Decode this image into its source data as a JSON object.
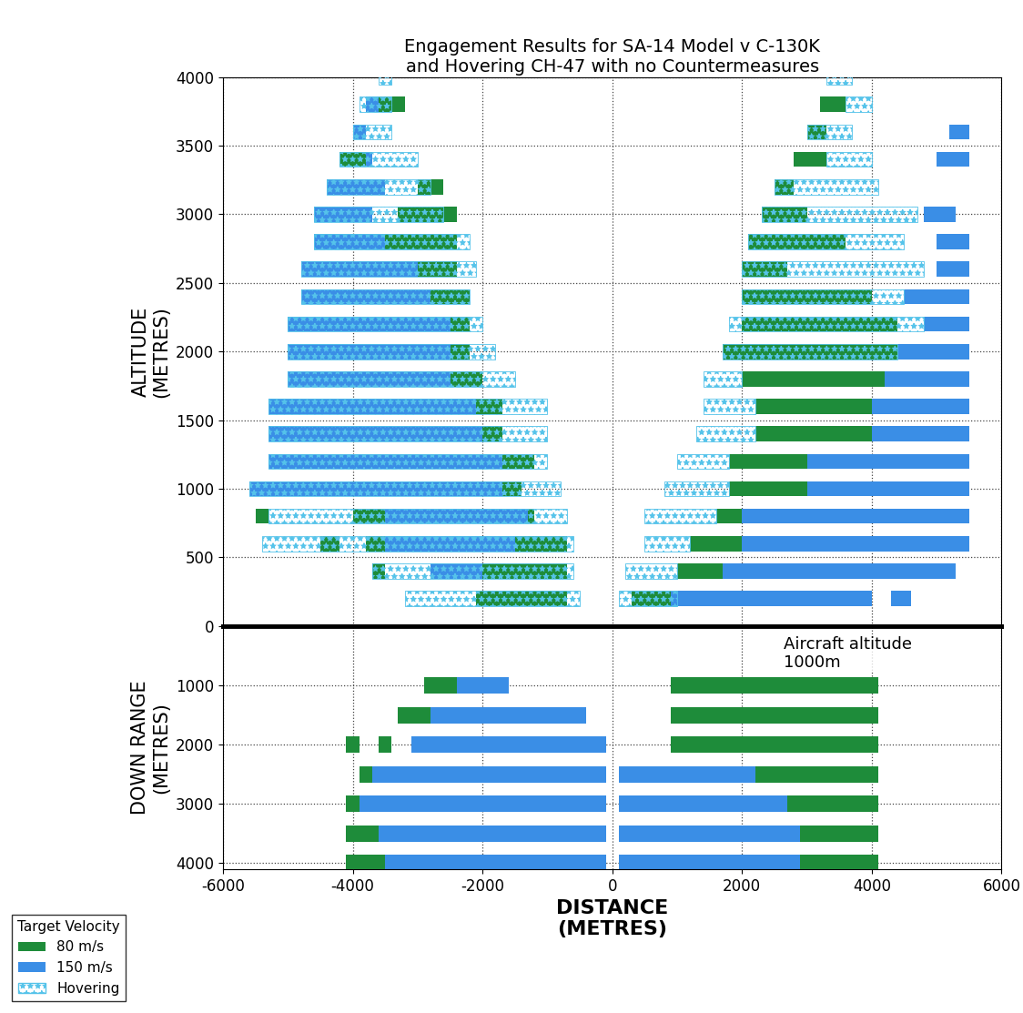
{
  "chart_data": [
    {
      "type": "segments",
      "title": "Engagement Results for SA-14 Model v C-130K\nand Hovering CH-47 with no Countermeasures",
      "y_label": "ALTITUDE\n(METRES)",
      "xlim": [
        -6000,
        6000
      ],
      "xticks": [
        -6000,
        -4000,
        -2000,
        0,
        2000,
        4000,
        6000
      ],
      "ylim": [
        0,
        4000
      ],
      "yticks": [
        0,
        500,
        1000,
        1500,
        2000,
        2500,
        3000,
        3500,
        4000
      ],
      "grid": true,
      "tick_labels": "y",
      "legend": "lower left",
      "legend_title": "Target Velocity",
      "series": [
        {
          "name": "80 m/s",
          "color": "#1e8c3a",
          "segments": [
            [
              200,
              -2100,
              -700
            ],
            [
              400,
              -3700,
              -3500
            ],
            [
              400,
              -2000,
              -700
            ],
            [
              600,
              -4500,
              -4200
            ],
            [
              600,
              -3800,
              -3500
            ],
            [
              600,
              -1500,
              -700
            ],
            [
              800,
              -5500,
              -5300
            ],
            [
              800,
              -4000,
              -3500
            ],
            [
              800,
              -1300,
              -1200
            ],
            [
              1000,
              -1700,
              -1400
            ],
            [
              1200,
              -1700,
              -1200
            ],
            [
              1400,
              -2000,
              -1700
            ],
            [
              1600,
              -2100,
              -1700
            ],
            [
              1800,
              -2500,
              -2000
            ],
            [
              2000,
              -2500,
              -2200
            ],
            [
              2200,
              -2500,
              -2200
            ],
            [
              2400,
              -2800,
              -2200
            ],
            [
              2600,
              -3000,
              -2400
            ],
            [
              2800,
              -3500,
              -2400
            ],
            [
              3000,
              -3300,
              -2400
            ],
            [
              3200,
              -3000,
              -2600
            ],
            [
              3400,
              -4200,
              -3800
            ],
            [
              3800,
              -3600,
              -3200
            ],
            [
              200,
              300,
              900
            ],
            [
              400,
              1000,
              1700
            ],
            [
              600,
              1200,
              2000
            ],
            [
              800,
              1600,
              2000
            ],
            [
              1000,
              1800,
              3000
            ],
            [
              1200,
              1800,
              3000
            ],
            [
              1400,
              2200,
              4000
            ],
            [
              1600,
              2200,
              4000
            ],
            [
              1800,
              2000,
              4200
            ],
            [
              2000,
              1700,
              4400
            ],
            [
              2200,
              2000,
              4400
            ],
            [
              2400,
              2000,
              4000
            ],
            [
              2600,
              2000,
              2700
            ],
            [
              2800,
              2100,
              3600
            ],
            [
              3000,
              2300,
              3000
            ],
            [
              3200,
              2500,
              2800
            ],
            [
              3400,
              2800,
              3300
            ],
            [
              3600,
              3000,
              3300
            ],
            [
              3800,
              3200,
              3600
            ]
          ]
        },
        {
          "name": "150 m/s",
          "color": "#3a8ee6",
          "segments": [
            [
              200,
              -1500,
              -1000
            ],
            [
              400,
              -2800,
              -1500
            ],
            [
              600,
              -3500,
              -1500
            ],
            [
              800,
              -3500,
              -1300
            ],
            [
              1000,
              -5600,
              -1500
            ],
            [
              1200,
              -5300,
              -1700
            ],
            [
              1400,
              -5300,
              -2000
            ],
            [
              1600,
              -5300,
              -2000
            ],
            [
              1800,
              -5000,
              -2500
            ],
            [
              2000,
              -5000,
              -2500
            ],
            [
              2200,
              -5000,
              -2500
            ],
            [
              2400,
              -4800,
              -2800
            ],
            [
              2600,
              -4800,
              -3000
            ],
            [
              2800,
              -4600,
              -3500
            ],
            [
              3000,
              -4600,
              -3700
            ],
            [
              3200,
              -4400,
              -3500
            ],
            [
              3400,
              -4200,
              -3700
            ],
            [
              3600,
              -4000,
              -3800
            ],
            [
              3800,
              -3800,
              -3300
            ],
            [
              200,
              800,
              4000
            ],
            [
              200,
              4300,
              4600
            ],
            [
              400,
              1600,
              5300
            ],
            [
              600,
              2000,
              5500
            ],
            [
              800,
              2000,
              5500
            ],
            [
              1000,
              3000,
              5500
            ],
            [
              1200,
              3000,
              5500
            ],
            [
              1400,
              4000,
              5500
            ],
            [
              1600,
              4000,
              5500
            ],
            [
              1800,
              4200,
              5500
            ],
            [
              2000,
              4400,
              5500
            ],
            [
              2200,
              4800,
              5500
            ],
            [
              2400,
              4500,
              5500
            ],
            [
              2600,
              5000,
              5500
            ],
            [
              2800,
              5000,
              5500
            ],
            [
              3000,
              4800,
              5300
            ],
            [
              3400,
              5000,
              5500
            ],
            [
              3600,
              5200,
              5500
            ]
          ]
        },
        {
          "name": "Hovering",
          "color": "#55c3ea",
          "segments": [
            [
              200,
              -3200,
              -500
            ],
            [
              400,
              -3700,
              -600
            ],
            [
              600,
              -5400,
              -600
            ],
            [
              800,
              -5300,
              -700
            ],
            [
              1000,
              -5600,
              -800
            ],
            [
              1200,
              -5300,
              -1000
            ],
            [
              1400,
              -5300,
              -1000
            ],
            [
              1600,
              -5300,
              -1000
            ],
            [
              1800,
              -5000,
              -1500
            ],
            [
              2000,
              -5000,
              -1800
            ],
            [
              2200,
              -5000,
              -2000
            ],
            [
              2400,
              -4800,
              -2200
            ],
            [
              2600,
              -4800,
              -2100
            ],
            [
              2800,
              -4600,
              -2200
            ],
            [
              3000,
              -4600,
              -2600
            ],
            [
              3200,
              -4400,
              -2800
            ],
            [
              3400,
              -4200,
              -3000
            ],
            [
              3600,
              -4000,
              -3400
            ],
            [
              3800,
              -3900,
              -3400
            ],
            [
              4000,
              -3600,
              -3400
            ],
            [
              200,
              100,
              1000
            ],
            [
              400,
              200,
              1000
            ],
            [
              600,
              500,
              1200
            ],
            [
              800,
              500,
              1600
            ],
            [
              1000,
              800,
              1800
            ],
            [
              1200,
              1000,
              1800
            ],
            [
              1400,
              1300,
              2200
            ],
            [
              1600,
              1400,
              2200
            ],
            [
              1800,
              1400,
              2000
            ],
            [
              2000,
              1700,
              4400
            ],
            [
              2200,
              1800,
              4800
            ],
            [
              2400,
              2000,
              4500
            ],
            [
              2600,
              2000,
              4800
            ],
            [
              2800,
              2100,
              4500
            ],
            [
              3000,
              2300,
              4700
            ],
            [
              3200,
              2500,
              4100
            ],
            [
              3400,
              3300,
              4000
            ],
            [
              3600,
              3000,
              3700
            ],
            [
              3800,
              3600,
              4000
            ],
            [
              4000,
              3300,
              3700
            ]
          ]
        }
      ]
    },
    {
      "type": "segments",
      "x_label": "DISTANCE\n(METRES)",
      "y_label": "DOWN RANGE\n(METRES)",
      "annotation": "Aircraft altitude\n1000m",
      "xlim": [
        -6000,
        6000
      ],
      "xticks": [
        -6000,
        -4000,
        -2000,
        0,
        2000,
        4000,
        6000
      ],
      "ylim": [
        4100,
        0
      ],
      "yticks": [
        1000,
        2000,
        3000,
        4000
      ],
      "grid": true,
      "series": [
        {
          "name": "80 m/s",
          "color": "#1e8c3a",
          "segments": [
            [
              1000,
              -2900,
              -2400
            ],
            [
              1500,
              -3300,
              -2800
            ],
            [
              2000,
              -4100,
              -3900
            ],
            [
              2000,
              -3600,
              -3400
            ],
            [
              2500,
              -3900,
              -3700
            ],
            [
              3000,
              -4100,
              -3900
            ],
            [
              3500,
              -4100,
              -3600
            ],
            [
              4000,
              -4100,
              -3500
            ],
            [
              1000,
              900,
              4100
            ],
            [
              1500,
              900,
              4100
            ],
            [
              2000,
              900,
              4100
            ],
            [
              2500,
              2200,
              4100
            ],
            [
              3000,
              2700,
              4100
            ],
            [
              3500,
              2900,
              4100
            ],
            [
              4000,
              2900,
              4100
            ]
          ]
        },
        {
          "name": "150 m/s",
          "color": "#3a8ee6",
          "segments": [
            [
              1000,
              -2400,
              -1600
            ],
            [
              1500,
              -2800,
              -400
            ],
            [
              2000,
              -3100,
              -100
            ],
            [
              2500,
              -3700,
              -100
            ],
            [
              3000,
              -3900,
              -100
            ],
            [
              3500,
              -3600,
              -100
            ],
            [
              4000,
              -3500,
              -100
            ],
            [
              2500,
              100,
              2200
            ],
            [
              3000,
              100,
              2700
            ],
            [
              3500,
              100,
              2900
            ],
            [
              4000,
              100,
              2900
            ]
          ]
        }
      ]
    }
  ]
}
